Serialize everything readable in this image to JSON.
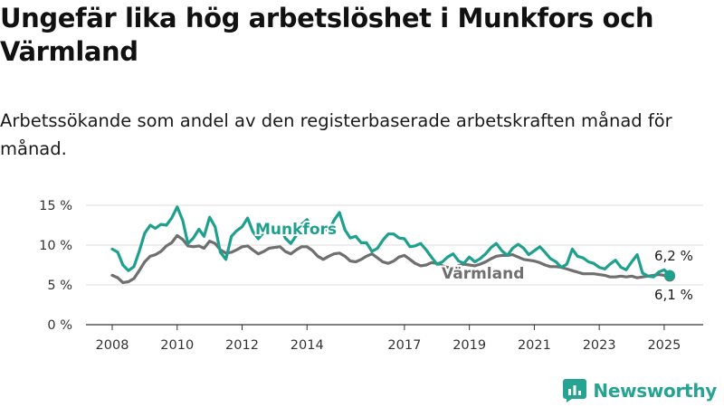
{
  "title": "Ungefär lika hög arbetslöshet i Munkfors och Värmland",
  "subtitle": "Arbetssökande som andel av den registerbaserade arbetskraften månad för månad.",
  "brand": {
    "name": "Newsworthy"
  },
  "colors": {
    "munkfors": "#1fa08e",
    "varmland": "#6f6f6f",
    "grid": "#dcdcdc",
    "axis": "#333333"
  },
  "chart_data": {
    "type": "line",
    "title": "Ungefär lika hög arbetslöshet i Munkfors och Värmland",
    "xlabel": "",
    "ylabel": "",
    "xlim": [
      2008.0,
      2025.8
    ],
    "ylim": [
      0,
      15
    ],
    "grid": true,
    "legend": "inline labels",
    "x_ticks": [
      {
        "value": 2008,
        "label": "2008"
      },
      {
        "value": 2010,
        "label": "2010"
      },
      {
        "value": 2012,
        "label": "2012"
      },
      {
        "value": 2014,
        "label": "2014"
      },
      {
        "value": 2017,
        "label": "2017"
      },
      {
        "value": 2019,
        "label": "2019"
      },
      {
        "value": 2021,
        "label": "2021"
      },
      {
        "value": 2023,
        "label": "2023"
      },
      {
        "value": 2025,
        "label": "2025"
      }
    ],
    "y_ticks": [
      {
        "value": 0,
        "label": "0 %"
      },
      {
        "value": 5,
        "label": "5 %"
      },
      {
        "value": 10,
        "label": "10 %"
      },
      {
        "value": 15,
        "label": "15 %"
      }
    ],
    "series": [
      {
        "name": "Munkfors",
        "key": "munkfors",
        "x": [
          2008.0,
          2008.17,
          2008.33,
          2008.5,
          2008.67,
          2008.83,
          2009.0,
          2009.17,
          2009.33,
          2009.5,
          2009.67,
          2009.83,
          2010.0,
          2010.17,
          2010.33,
          2010.5,
          2010.67,
          2010.83,
          2011.0,
          2011.17,
          2011.33,
          2011.5,
          2011.67,
          2011.83,
          2012.0,
          2012.17,
          2012.33,
          2012.5,
          2012.67,
          2012.83,
          2013.0,
          2013.17,
          2013.33,
          2013.5,
          2013.67,
          2013.83,
          2014.0,
          2014.17,
          2014.33,
          2014.5,
          2014.67,
          2014.83,
          2015.0,
          2015.17,
          2015.33,
          2015.5,
          2015.67,
          2015.83,
          2016.0,
          2016.17,
          2016.33,
          2016.5,
          2016.67,
          2016.83,
          2017.0,
          2017.17,
          2017.33,
          2017.5,
          2017.67,
          2017.83,
          2018.0,
          2018.17,
          2018.33,
          2018.5,
          2018.67,
          2018.83,
          2019.0,
          2019.17,
          2019.33,
          2019.5,
          2019.67,
          2019.83,
          2020.0,
          2020.17,
          2020.33,
          2020.5,
          2020.67,
          2020.83,
          2021.0,
          2021.17,
          2021.33,
          2021.5,
          2021.67,
          2021.83,
          2022.0,
          2022.17,
          2022.33,
          2022.5,
          2022.67,
          2022.83,
          2023.0,
          2023.17,
          2023.33,
          2023.5,
          2023.67,
          2023.83,
          2024.0,
          2024.17,
          2024.33,
          2024.5,
          2024.67,
          2024.83,
          2025.0,
          2025.1,
          2025.17
        ],
        "values": [
          9.5,
          9.1,
          7.5,
          6.8,
          7.3,
          9.2,
          11.5,
          12.5,
          12.1,
          12.6,
          12.5,
          13.4,
          14.8,
          13.1,
          10.2,
          10.9,
          12.0,
          11.1,
          13.5,
          12.3,
          9.1,
          8.2,
          11.1,
          11.8,
          12.3,
          13.4,
          11.7,
          10.8,
          11.6,
          12.3,
          11.6,
          12.4,
          10.9,
          10.2,
          11.2,
          12.6,
          13.2,
          11.9,
          11.5,
          12.2,
          11.7,
          13.1,
          14.1,
          11.9,
          10.9,
          11.1,
          10.3,
          10.3,
          9.2,
          9.6,
          10.6,
          11.4,
          11.4,
          10.9,
          10.8,
          9.8,
          9.9,
          10.2,
          9.4,
          8.5,
          7.6,
          7.9,
          8.5,
          8.9,
          8.0,
          7.7,
          8.5,
          7.9,
          8.3,
          8.9,
          9.7,
          10.2,
          9.3,
          8.7,
          9.6,
          10.1,
          9.6,
          8.8,
          9.3,
          9.8,
          9.1,
          8.3,
          7.9,
          7.2,
          7.6,
          9.5,
          8.6,
          8.4,
          7.9,
          7.7,
          7.2,
          7.0,
          7.6,
          8.1,
          7.2,
          6.9,
          7.9,
          8.8,
          6.5,
          6.1,
          6.0,
          6.6,
          6.9,
          6.5,
          6.2
        ]
      },
      {
        "name": "Värmland",
        "key": "varmland",
        "x": [
          2008.0,
          2008.17,
          2008.33,
          2008.5,
          2008.67,
          2008.83,
          2009.0,
          2009.17,
          2009.33,
          2009.5,
          2009.67,
          2009.83,
          2010.0,
          2010.17,
          2010.33,
          2010.5,
          2010.67,
          2010.83,
          2011.0,
          2011.17,
          2011.33,
          2011.5,
          2011.67,
          2011.83,
          2012.0,
          2012.17,
          2012.33,
          2012.5,
          2012.67,
          2012.83,
          2013.0,
          2013.17,
          2013.33,
          2013.5,
          2013.67,
          2013.83,
          2014.0,
          2014.17,
          2014.33,
          2014.5,
          2014.67,
          2014.83,
          2015.0,
          2015.17,
          2015.33,
          2015.5,
          2015.67,
          2015.83,
          2016.0,
          2016.17,
          2016.33,
          2016.5,
          2016.67,
          2016.83,
          2017.0,
          2017.17,
          2017.33,
          2017.5,
          2017.67,
          2017.83,
          2018.0,
          2018.17,
          2018.33,
          2018.5,
          2018.67,
          2018.83,
          2019.0,
          2019.17,
          2019.33,
          2019.5,
          2019.67,
          2019.83,
          2020.0,
          2020.17,
          2020.33,
          2020.5,
          2020.67,
          2020.83,
          2021.0,
          2021.17,
          2021.33,
          2021.5,
          2021.67,
          2021.83,
          2022.0,
          2022.17,
          2022.33,
          2022.5,
          2022.67,
          2022.83,
          2023.0,
          2023.17,
          2023.33,
          2023.5,
          2023.67,
          2023.83,
          2024.0,
          2024.17,
          2024.33,
          2024.5,
          2024.67,
          2024.83,
          2025.0,
          2025.1,
          2025.17
        ],
        "values": [
          6.2,
          5.9,
          5.3,
          5.4,
          5.8,
          6.8,
          7.9,
          8.6,
          8.8,
          9.2,
          9.9,
          10.3,
          11.2,
          10.7,
          9.9,
          9.8,
          9.9,
          9.6,
          10.5,
          10.2,
          9.4,
          9.0,
          9.1,
          9.4,
          9.8,
          9.9,
          9.4,
          8.9,
          9.2,
          9.6,
          9.7,
          9.8,
          9.2,
          8.9,
          9.4,
          9.8,
          9.8,
          9.3,
          8.6,
          8.2,
          8.6,
          8.9,
          9.0,
          8.6,
          8.0,
          7.9,
          8.2,
          8.6,
          8.9,
          8.4,
          7.9,
          7.7,
          8.0,
          8.5,
          8.7,
          8.2,
          7.7,
          7.4,
          7.5,
          7.8,
          7.7,
          7.4,
          7.2,
          7.1,
          7.4,
          7.6,
          7.5,
          7.4,
          7.6,
          7.9,
          8.3,
          8.6,
          8.7,
          8.7,
          8.8,
          8.5,
          8.2,
          8.1,
          8.0,
          7.8,
          7.5,
          7.3,
          7.3,
          7.2,
          7.0,
          6.8,
          6.6,
          6.4,
          6.4,
          6.4,
          6.3,
          6.2,
          6.0,
          6.0,
          6.1,
          6.0,
          6.1,
          5.9,
          6.0,
          6.1,
          6.2,
          6.3,
          6.2,
          6.1,
          6.1
        ]
      }
    ],
    "annotations": [
      {
        "series": "munkfors",
        "text": "6,2 %"
      },
      {
        "series": "varmland",
        "text": "6,1 %"
      }
    ]
  }
}
